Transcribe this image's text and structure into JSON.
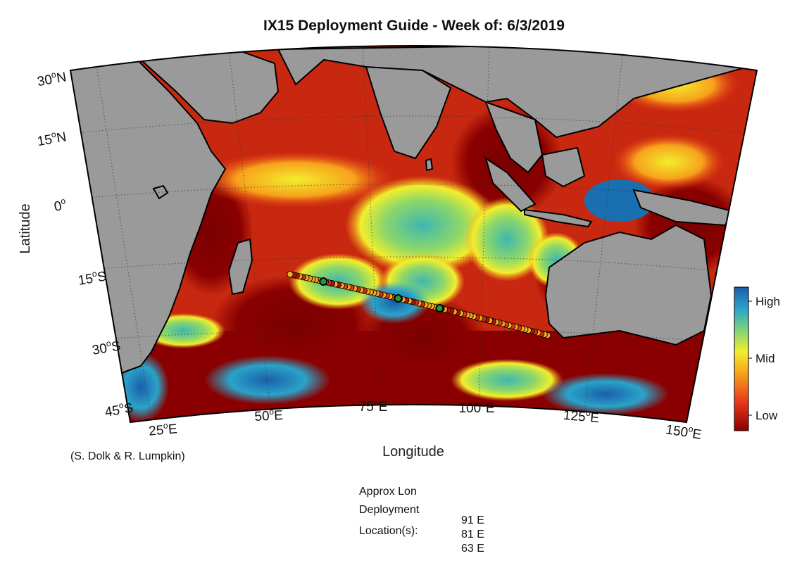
{
  "title": "IX15 Deployment Guide - Week of: 6/3/2019",
  "xlabel": "Longitude",
  "ylabel": "Latitude",
  "credit": "(S. Dolk & R. Lumpkin)",
  "lat_ticks": [
    {
      "deg": "30",
      "sup": "o",
      "hem": "N"
    },
    {
      "deg": "15",
      "sup": "o",
      "hem": "N"
    },
    {
      "deg": "0",
      "sup": "o",
      "hem": ""
    },
    {
      "deg": "15",
      "sup": "o",
      "hem": "S"
    },
    {
      "deg": "30",
      "sup": "o",
      "hem": "S"
    },
    {
      "deg": "45",
      "sup": "o",
      "hem": "S"
    }
  ],
  "lon_ticks": [
    {
      "deg": "25",
      "sup": "o",
      "hem": "E"
    },
    {
      "deg": "50",
      "sup": "o",
      "hem": "E"
    },
    {
      "deg": "75",
      "sup": "o",
      "hem": "E"
    },
    {
      "deg": "100",
      "sup": "o",
      "hem": "E"
    },
    {
      "deg": "125",
      "sup": "o",
      "hem": "E"
    },
    {
      "deg": "150",
      "sup": "o",
      "hem": "E"
    }
  ],
  "colorbar": {
    "labels": [
      "High",
      "Mid",
      "Low"
    ],
    "colors": [
      "#1a5fa8",
      "#2aa3c9",
      "#7fd37a",
      "#f2ee2c",
      "#f7a21b",
      "#e8391a",
      "#8a0000"
    ]
  },
  "deployment": {
    "label_lines": [
      "Approx Lon",
      "Deployment",
      "Location(s):"
    ],
    "locations": [
      "91 E",
      "81 E",
      "63 E"
    ]
  },
  "track": {
    "start": {
      "lon": 117,
      "lat": -28
    },
    "end": {
      "lon": 55,
      "lat": -15.5
    },
    "deployments_lon": [
      91,
      81,
      63
    ]
  },
  "map_colors": {
    "land": "#9a9a9a",
    "ocean_low": "#8a0000",
    "ocean_red": "#d42a14"
  }
}
